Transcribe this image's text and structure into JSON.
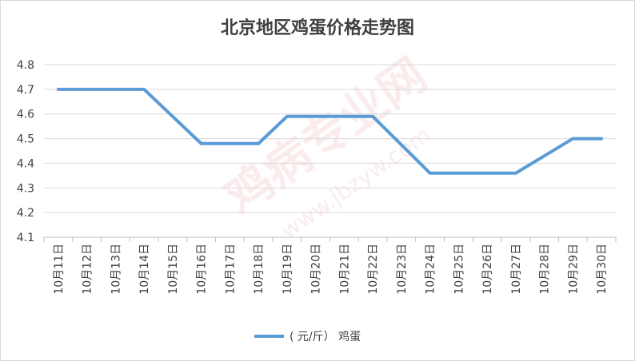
{
  "watermark": {
    "text": "鸡病专业网",
    "url": "www.jbzyw.com"
  },
  "chart_data": {
    "type": "line",
    "title": "北京地区鸡蛋价格走势图",
    "categories": [
      "10月11日",
      "10月12日",
      "10月13日",
      "10月14日",
      "10月15日",
      "10月16日",
      "10月17日",
      "10月18日",
      "10月19日",
      "10月20日",
      "10月21日",
      "10月22日",
      "10月23日",
      "10月24日",
      "10月25日",
      "10月26日",
      "10月27日",
      "10月28日",
      "10月29日",
      "10月30日"
    ],
    "series": [
      {
        "name": "( 元/斤）  鸡蛋",
        "color": "#5b9bd5",
        "values": [
          4.7,
          4.7,
          4.7,
          4.7,
          4.59,
          4.48,
          4.48,
          4.48,
          4.59,
          4.59,
          4.59,
          4.59,
          4.475,
          4.36,
          4.36,
          4.36,
          4.36,
          4.43,
          4.5,
          4.5
        ]
      }
    ],
    "ylim": [
      4.1,
      4.8
    ],
    "yticks": [
      "4.1",
      "4.2",
      "4.3",
      "4.4",
      "4.5",
      "4.6",
      "4.7",
      "4.8"
    ],
    "grid": true,
    "legend": "bottom"
  }
}
